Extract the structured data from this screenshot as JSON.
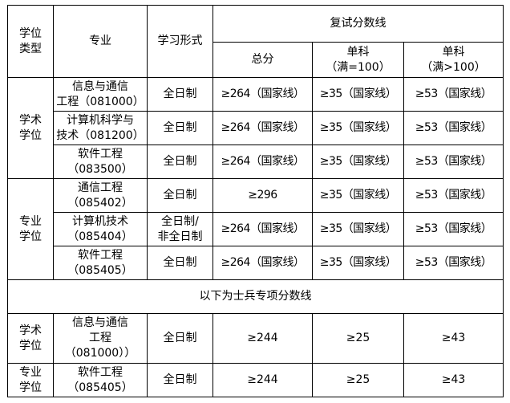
{
  "header": {
    "degree_type": "学位\n类型",
    "major": "专业",
    "study_mode": "学习形式",
    "retest_line": "复试分数线",
    "total": "总分",
    "single_100": "单科\n（满=100）",
    "single_gt100": "单科\n（满>100）"
  },
  "groups": [
    {
      "type": "学术\n学位",
      "rows": [
        {
          "major": "信息与通信\n工程（081000）",
          "mode": "全日制",
          "total": "≥264（国家线）",
          "s100": "≥35（国家线）",
          "sgt100": "≥53（国家线）"
        },
        {
          "major": "计算机科学与\n技术（081200）",
          "mode": "全日制",
          "total": "≥264（国家线）",
          "s100": "≥35（国家线）",
          "sgt100": "≥53（国家线）"
        },
        {
          "major": "软件工程\n（083500）",
          "mode": "全日制",
          "total": "≥264（国家线）",
          "s100": "≥35（国家线）",
          "sgt100": "≥53（国家线）"
        }
      ]
    },
    {
      "type": "专业\n学位",
      "rows": [
        {
          "major": "通信工程\n（085402）",
          "mode": "全日制",
          "total": "≥296",
          "s100": "≥35（国家线）",
          "sgt100": "≥53（国家线）"
        },
        {
          "major": "计算机技术\n（085404）",
          "mode": "全日制/\n非全日制",
          "total": "≥264（国家线）",
          "s100": "≥35（国家线）",
          "sgt100": "≥53（国家线）"
        },
        {
          "major": "软件工程\n（085405）",
          "mode": "全日制",
          "total": "≥264（国家线）",
          "s100": "≥35（国家线）",
          "sgt100": "≥53（国家线）"
        }
      ]
    }
  ],
  "soldier_banner": "以下为士兵专项分数线",
  "soldier_rows": [
    {
      "type": "学术\n学位",
      "major": "信息与通信\n工程\n（081000））",
      "mode": "全日制",
      "total": "≥244",
      "s100": "≥25",
      "sgt100": "≥43"
    },
    {
      "type": "专业\n学位",
      "major": "软件工程\n（085405）",
      "mode": "全日制",
      "total": "≥244",
      "s100": "≥25",
      "sgt100": "≥43"
    }
  ]
}
